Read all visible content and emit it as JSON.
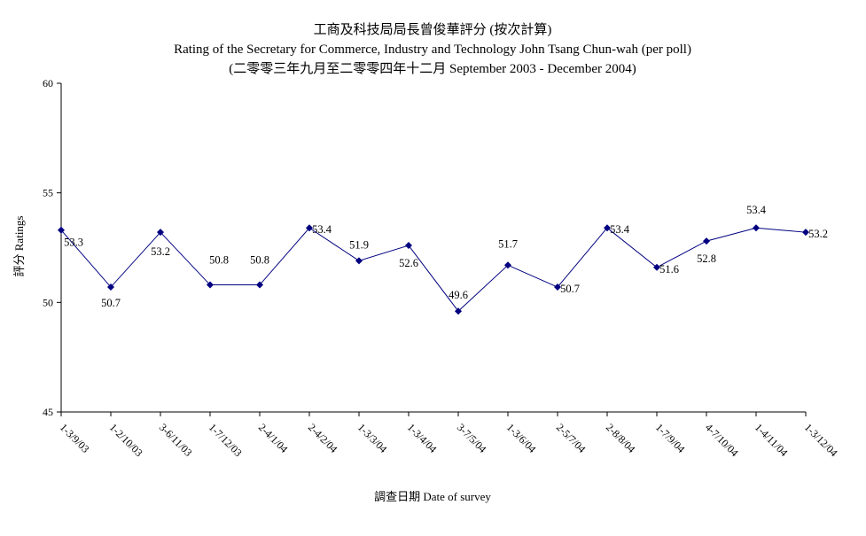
{
  "chart_data": {
    "type": "line",
    "title": "工商及科技局局長曾俊華評分 (按次計算)",
    "subtitle": "Rating of the Secretary for Commerce, Industry and Technology John Tsang Chun-wah  (per poll)",
    "subtitle2": "(二零零三年九月至二零零四年十二月  September 2003 - December 2004)",
    "xlabel": "調查日期 Date of survey",
    "ylabel": "評分 Ratings",
    "ylim": [
      45,
      60
    ],
    "yticks": [
      45,
      50,
      55,
      60
    ],
    "categories": [
      "1-3/9/03",
      "1-2/10/03",
      "3-6/11/03",
      "1-7/12/03",
      "2-4/1/04",
      "2-4/2/04",
      "1-3/3/04",
      "1-3/4/04",
      "3-7/5/04",
      "1-3/6/04",
      "2-5/7/04",
      "2-8/8/04",
      "1-7/9/04",
      "4-7/10/04",
      "1-4/11/04",
      "1-3/12/04"
    ],
    "values": [
      53.3,
      50.7,
      53.2,
      50.8,
      50.8,
      53.4,
      51.9,
      52.6,
      49.6,
      51.7,
      50.7,
      53.4,
      51.6,
      52.8,
      53.4,
      53.2
    ],
    "data_labels": [
      "53.3",
      "50.7",
      "53.2",
      "50.8",
      "50.8",
      "53.4",
      "51.9",
      "52.6",
      "49.6",
      "51.7",
      "50.7",
      "53.4",
      "51.6",
      "52.8",
      "53.4",
      "53.2"
    ],
    "grid": false,
    "legend": "none",
    "line_color": "#000080",
    "marker_color": "#000080"
  }
}
